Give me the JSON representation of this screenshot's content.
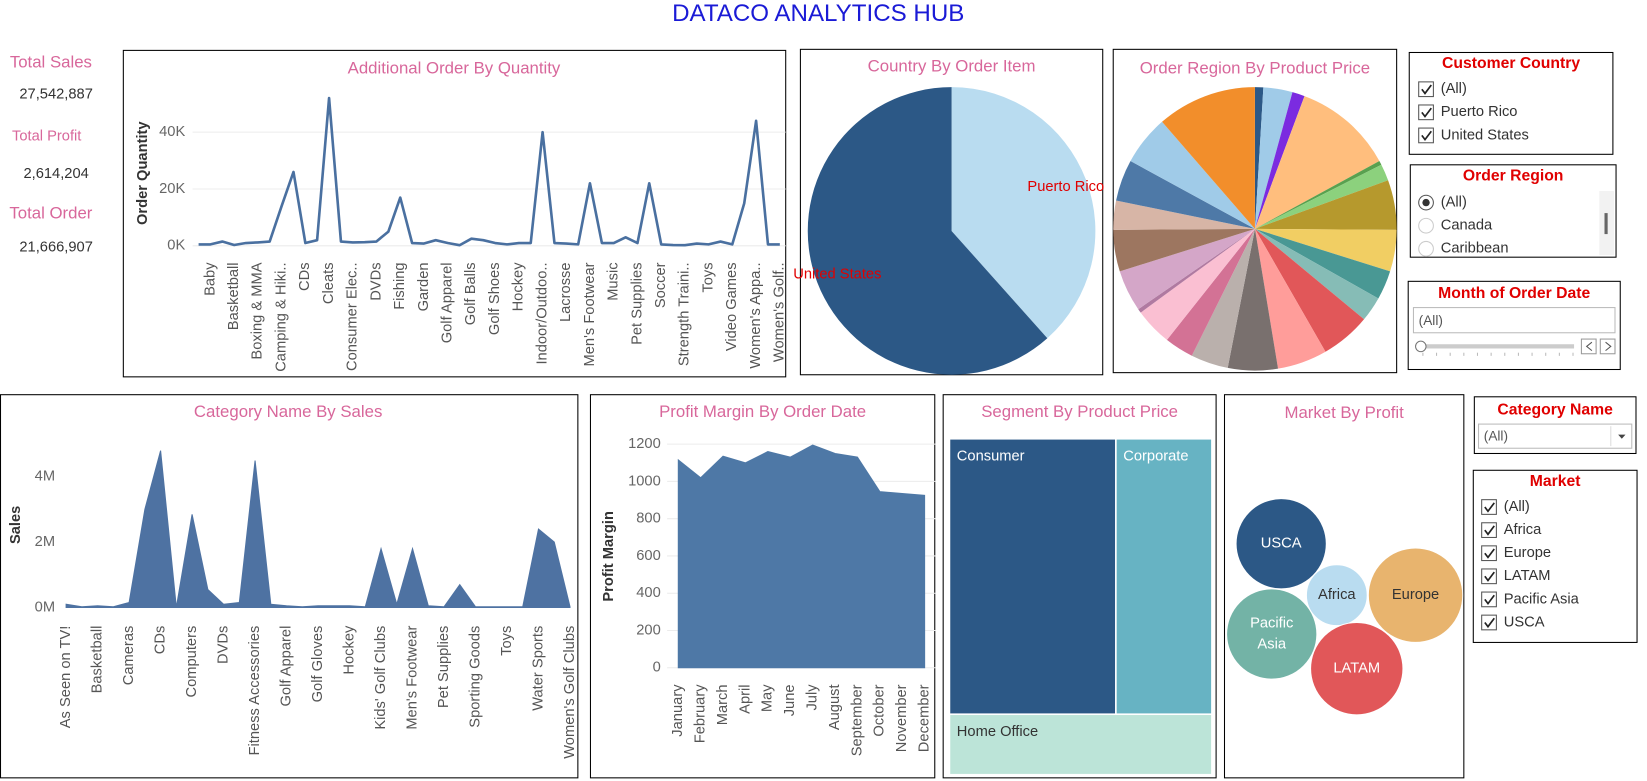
{
  "title": "DATACO ANALYTICS HUB",
  "kpis": [
    {
      "label": "Total Sales",
      "value": "27,542,887"
    },
    {
      "label": "Total Profit",
      "value": "2,614,204"
    },
    {
      "label": "Total Order",
      "value": "21,666,907"
    }
  ],
  "chart_data": [
    {
      "type": "line",
      "title": "Additional Order By Quantity",
      "y_label": "Order Quantity",
      "color": "#4a70a0",
      "grid": true,
      "categories": [
        null,
        "Baby",
        null,
        "Basketball",
        null,
        "Boxing & MMA",
        null,
        "Camping & Hiki..",
        null,
        "CDs",
        null,
        "Cleats",
        null,
        "Consumer Elec..",
        null,
        "DVDs",
        null,
        "Fishing",
        null,
        "Garden",
        null,
        "Golf Apparel",
        null,
        "Golf Balls",
        null,
        "Golf Shoes",
        null,
        "Hockey",
        null,
        "Indoor/Outdoo..",
        null,
        "Lacrosse",
        null,
        "Men's Footwear",
        null,
        "Music",
        null,
        "Pet Supplies",
        null,
        "Soccer",
        null,
        "Strength Traini..",
        null,
        "Toys",
        null,
        "Video Games",
        null,
        "Women's Appa..",
        null,
        "Women's Golf.."
      ],
      "values": [
        500,
        500,
        1500,
        300,
        1000,
        1200,
        1500,
        14000,
        26000,
        1000,
        2000,
        52000,
        1500,
        1200,
        1300,
        1500,
        5000,
        17000,
        1000,
        800,
        2000,
        1000,
        200,
        2500,
        2000,
        1000,
        500,
        1000,
        1000,
        40000,
        1000,
        800,
        500,
        22000,
        1000,
        1000,
        3000,
        1000,
        22000,
        500,
        300,
        200,
        800,
        500,
        1500,
        500,
        15000,
        44000,
        500,
        500
      ],
      "ylim": [
        -4000,
        54000
      ],
      "yticks": [
        {
          "value": 0,
          "label": "0K"
        },
        {
          "value": 20000,
          "label": "20K"
        },
        {
          "value": 40000,
          "label": "40K"
        }
      ]
    },
    {
      "type": "pie",
      "title": "Country By Order Item",
      "categories": [
        "Puerto Rico",
        "United States"
      ],
      "values": [
        38.4,
        61.6
      ],
      "colors": [
        "#b9dcf0",
        "#2c5886"
      ],
      "label_color": "#e00000"
    },
    {
      "type": "pie",
      "title": "Order Region By Product Price",
      "values": [
        1,
        3.5,
        1.5,
        12,
        0.5,
        2,
        6,
        5,
        3.5,
        3,
        6,
        6,
        6,
        4.5,
        3.5,
        4.5,
        0.5,
        5,
        5,
        3.5,
        5,
        6,
        12
      ],
      "colors": [
        "#2c5886",
        "#a0cbe8",
        "#7b2be0",
        "#ffbe7d",
        "#59a14f",
        "#8cd17d",
        "#b6992d",
        "#f1ce63",
        "#499894",
        "#86bcb6",
        "#e15759",
        "#ff9d9a",
        "#79706e",
        "#bab0ac",
        "#d37295",
        "#fabfd2",
        "#b07aa1",
        "#d4a6c8",
        "#9d7660",
        "#d7b5a6",
        "#4e79a7",
        "#a0cbe8",
        "#f28e2b"
      ]
    },
    {
      "type": "area",
      "title": "Category Name By Sales",
      "y_label": "Sales",
      "color": "#4e72a2",
      "grid": false,
      "categories": [
        "As Seen on TV!",
        null,
        "Basketball",
        null,
        "Cameras",
        null,
        "CDs",
        null,
        "Computers",
        null,
        "DVDs",
        null,
        "Fitness Accessories",
        null,
        "Golf Apparel",
        null,
        "Golf Gloves",
        null,
        "Hockey",
        null,
        "Kids' Golf Clubs",
        null,
        "Men's Footwear",
        null,
        "Pet Supplies",
        null,
        "Sporting Goods",
        null,
        "Toys",
        null,
        "Water Sports",
        null,
        "Women's Golf Clubs"
      ],
      "values": [
        100000,
        20000,
        50000,
        20000,
        150000,
        3000000,
        4800000,
        0,
        2850000,
        550000,
        100000,
        150000,
        4500000,
        100000,
        50000,
        20000,
        50000,
        50000,
        50000,
        20000,
        1800000,
        100000,
        1800000,
        50000,
        20000,
        700000,
        20000,
        20000,
        20000,
        20000,
        2400000,
        2000000,
        20000
      ],
      "ylim": [
        -300000,
        5100000
      ],
      "yticks": [
        {
          "value": 0,
          "label": "0M"
        },
        {
          "value": 2000000,
          "label": "2M"
        },
        {
          "value": 4000000,
          "label": "4M"
        }
      ]
    },
    {
      "type": "area",
      "title": "Profit Margin By Order Date",
      "y_label": "Profit Margin",
      "color": "#4e78a6",
      "grid": true,
      "categories": [
        "January",
        "February",
        "March",
        "April",
        "May",
        "June",
        "July",
        "August",
        "September",
        "October",
        "November",
        "December"
      ],
      "values": [
        1115,
        1020,
        1135,
        1100,
        1160,
        1130,
        1195,
        1150,
        1130,
        945,
        935,
        925
      ],
      "ylim": [
        -50,
        1240
      ],
      "yticks": [
        0,
        200,
        400,
        600,
        800,
        1000,
        1200
      ]
    },
    {
      "type": "treemap",
      "title": "Segment By Product Price",
      "categories": [
        "Consumer",
        "Corporate",
        "Home Office"
      ],
      "values": [
        52,
        30,
        18
      ],
      "colors": [
        "#2c5886",
        "#67b3c3",
        "#bce4d8"
      ]
    },
    {
      "type": "bubble",
      "title": "Market By Profit",
      "categories": [
        "USCA",
        "Africa",
        "Europe",
        "Pacific Asia",
        "LATAM"
      ],
      "values": [
        568000,
        258000,
        622000,
        568000,
        595000
      ],
      "colors": [
        "#2c5886",
        "#b9dcf0",
        "#e8b46e",
        "#73b3a6",
        "#e15759"
      ]
    }
  ],
  "filters": [
    {
      "title": "Customer Country",
      "kind": "checkbox",
      "options": [
        "(All)",
        "Puerto Rico",
        "United States"
      ],
      "checked": [
        true,
        true,
        true
      ]
    },
    {
      "title": "Order Region",
      "kind": "radio",
      "options": [
        "(All)",
        "Canada",
        "Caribbean"
      ],
      "checked": [
        true,
        false,
        false
      ]
    },
    {
      "title": "Month of Order Date",
      "kind": "slider",
      "value": "(All)"
    },
    {
      "title": "Category Name",
      "kind": "dropdown",
      "value": "(All)"
    },
    {
      "title": "Market",
      "kind": "checkbox",
      "options": [
        "(All)",
        "Africa",
        "Europe",
        "LATAM",
        "Pacific Asia",
        "USCA"
      ],
      "checked": [
        true,
        true,
        true,
        true,
        true,
        true
      ]
    }
  ]
}
